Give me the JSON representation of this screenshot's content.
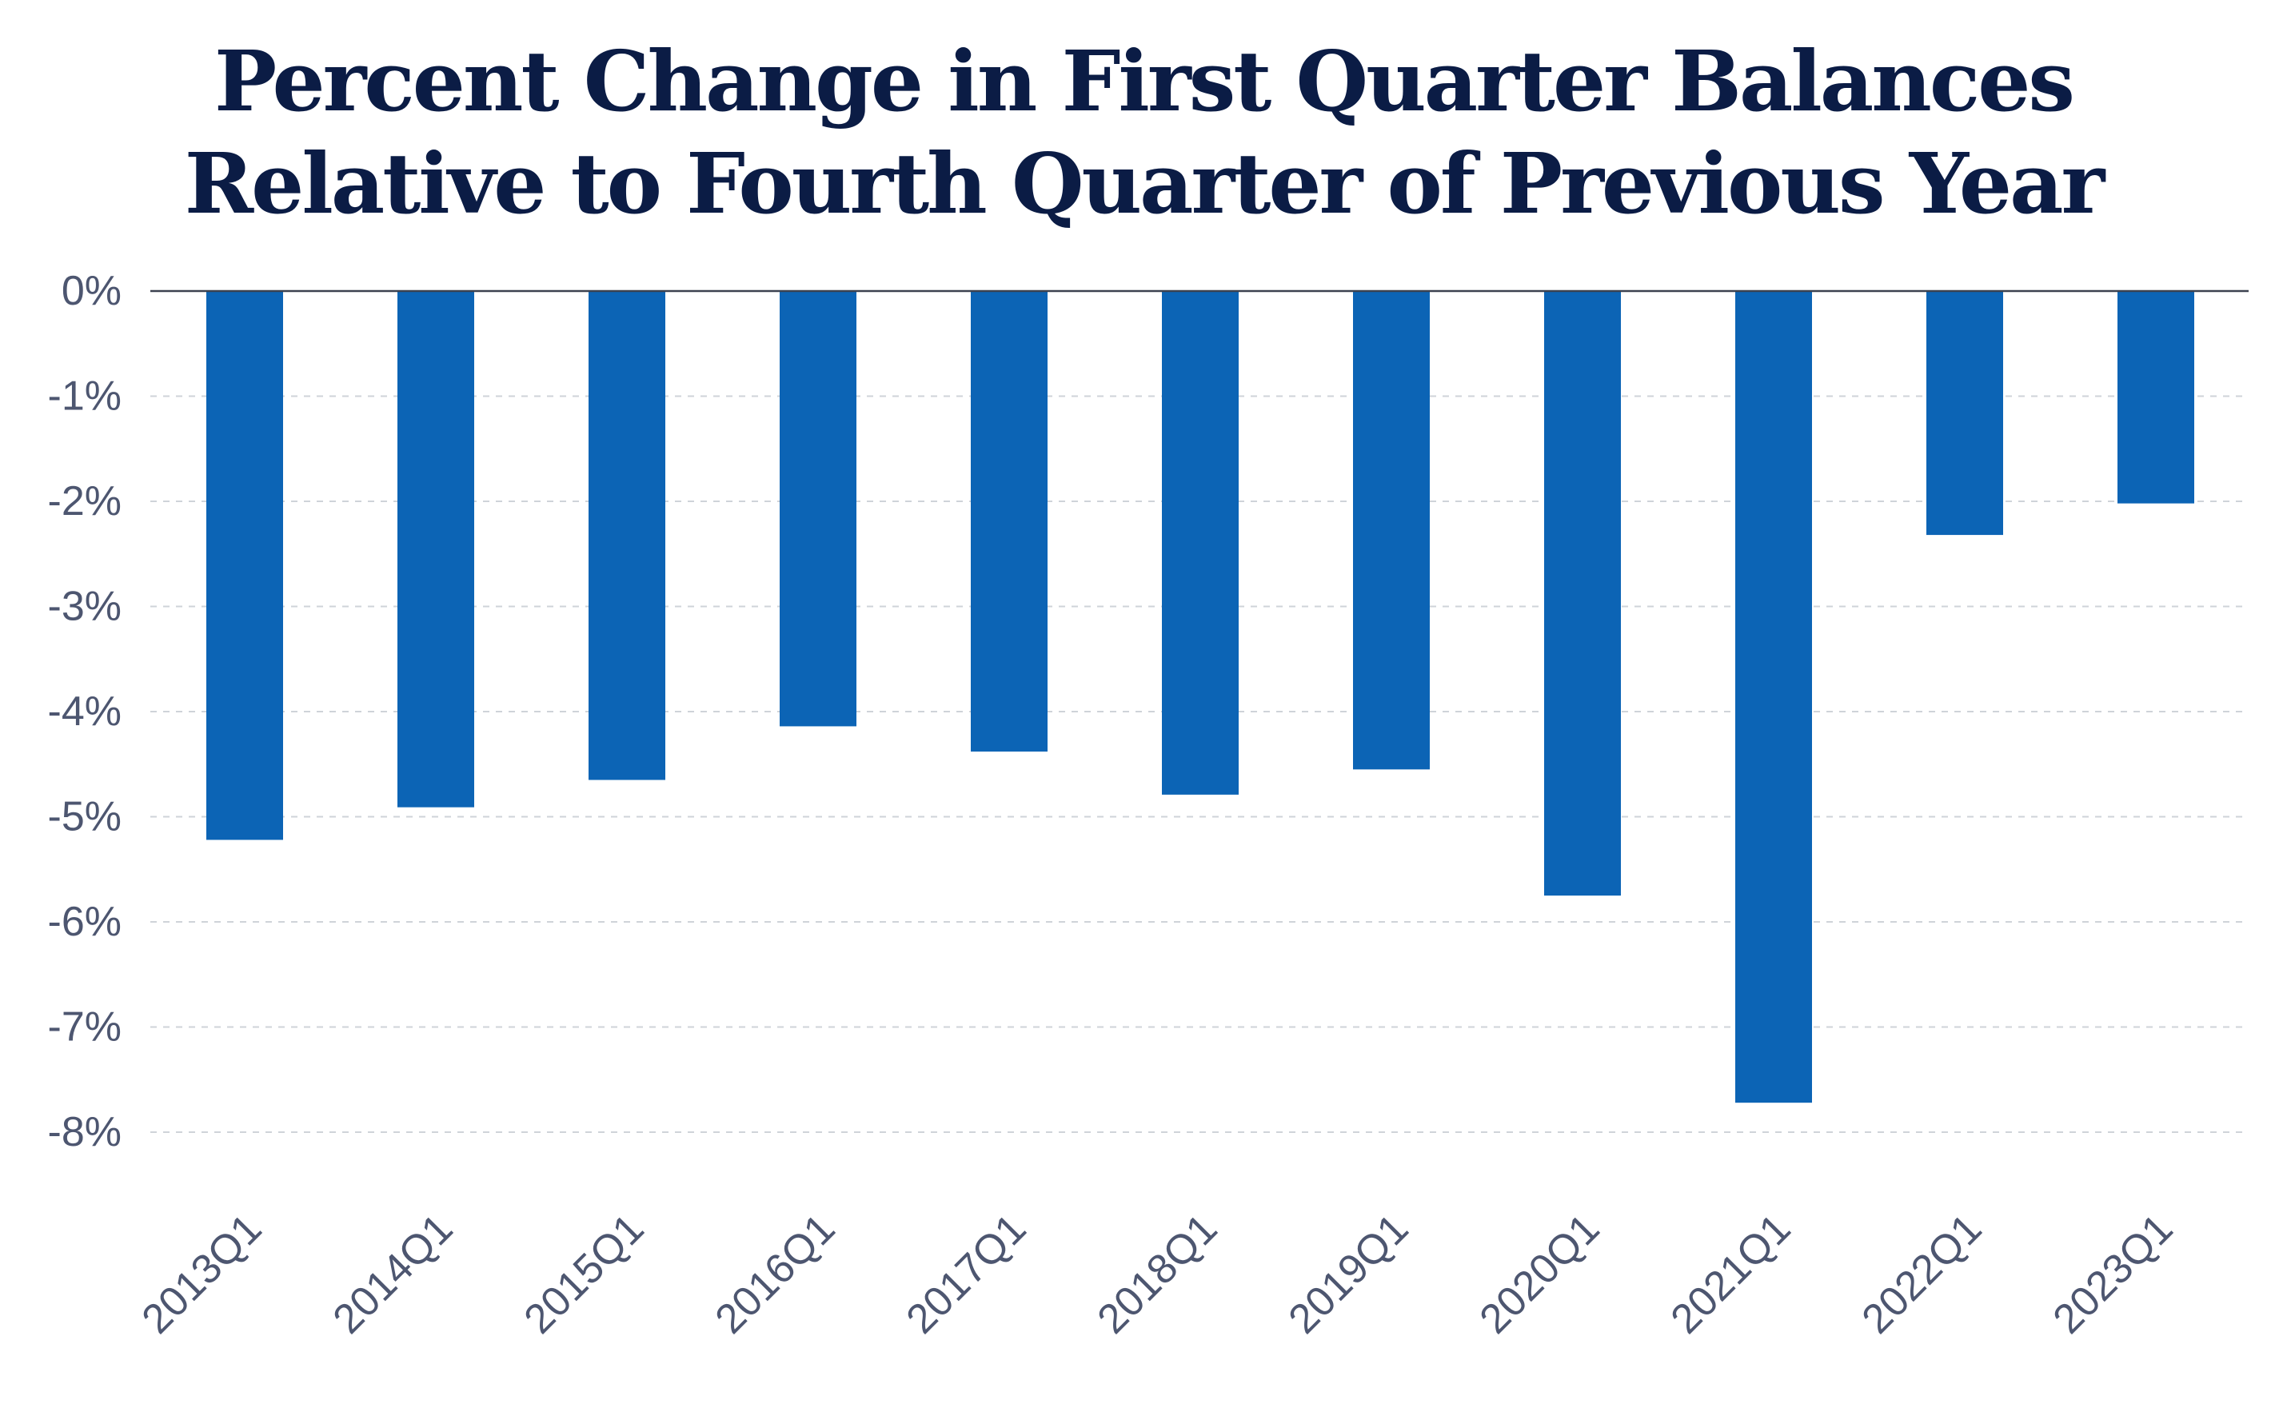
{
  "chart_data": {
    "type": "bar",
    "title_lines": [
      "Percent Change in First Quarter Balances",
      "Relative to Fourth Quarter of Previous Year"
    ],
    "title": "Percent Change in First Quarter Balances Relative to Fourth Quarter of Previous Year",
    "xlabel": "",
    "ylabel": "",
    "categories": [
      "2013Q1",
      "2014Q1",
      "2015Q1",
      "2016Q1",
      "2017Q1",
      "2018Q1",
      "2019Q1",
      "2020Q1",
      "2021Q1",
      "2022Q1",
      "2023Q1"
    ],
    "values": [
      -5.22,
      -4.91,
      -4.65,
      -4.14,
      -4.38,
      -4.79,
      -4.55,
      -5.75,
      -7.72,
      -2.32,
      -2.02
    ],
    "ylim": [
      -8,
      0
    ],
    "yticks": [
      0,
      -1,
      -2,
      -3,
      -4,
      -5,
      -6,
      -7,
      -8
    ],
    "ytick_labels": [
      "0%",
      "-1%",
      "-2%",
      "-3%",
      "-4%",
      "-5%",
      "-6%",
      "-7%",
      "-8%"
    ],
    "grid": true,
    "legend": "none",
    "colors": {
      "bar": "#0c64b5",
      "title": "#0b1c45",
      "axis_text": "#4d5670",
      "zero_line": "#3c4250",
      "grid": "#cfd3d9"
    }
  }
}
